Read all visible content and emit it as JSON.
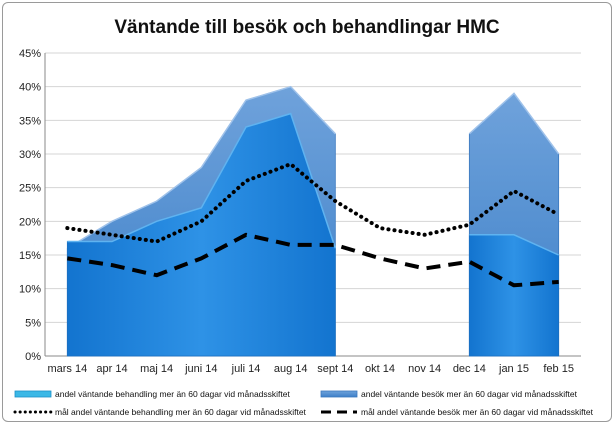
{
  "chart_data": {
    "type": "area",
    "title": "Väntande till besök och behandlingar HMC",
    "xlabel": "",
    "ylabel": "",
    "categories": [
      "mars 14",
      "apr 14",
      "maj 14",
      "juni 14",
      "juli 14",
      "aug 14",
      "sept 14",
      "okt 14",
      "nov 14",
      "dec 14",
      "jan 15",
      "feb 15"
    ],
    "ylim": [
      0,
      45
    ],
    "yticks": [
      "0%",
      "5%",
      "10%",
      "15%",
      "20%",
      "25%",
      "30%",
      "35%",
      "40%",
      "45%"
    ],
    "ytick_values": [
      0,
      5,
      10,
      15,
      20,
      25,
      30,
      35,
      40,
      45
    ],
    "grid": true,
    "legend_position": "bottom",
    "series": [
      {
        "name": "andel väntande behandling mer än 60 dagar vid månadsskiftet",
        "kind": "area",
        "color": "#1f82d6",
        "values": [
          17,
          17,
          20,
          22,
          34,
          36,
          16,
          null,
          null,
          18,
          18,
          15
        ]
      },
      {
        "name": "andel väntande besök mer än 60 dagar vid månadsskiftet",
        "kind": "area",
        "color": "#4d8fd0",
        "values": [
          16,
          20,
          23,
          28,
          38,
          40,
          33,
          null,
          null,
          33,
          39,
          30
        ]
      },
      {
        "name": "mål andel väntande behandling mer än 60 dagar vid månadsskiftet",
        "kind": "line",
        "style": "dotted",
        "color": "#000000",
        "values": [
          19,
          18,
          17,
          20,
          26,
          28.5,
          23,
          19,
          18,
          19.5,
          24.5,
          21
        ]
      },
      {
        "name": "mål andel  väntande besök mer än 60 dagar vid månadsskiftet",
        "kind": "line",
        "style": "dashed",
        "color": "#000000",
        "values": [
          14.5,
          13.5,
          12,
          14.5,
          18,
          16.5,
          16.5,
          14.5,
          13,
          14,
          10.5,
          11
        ]
      }
    ]
  }
}
